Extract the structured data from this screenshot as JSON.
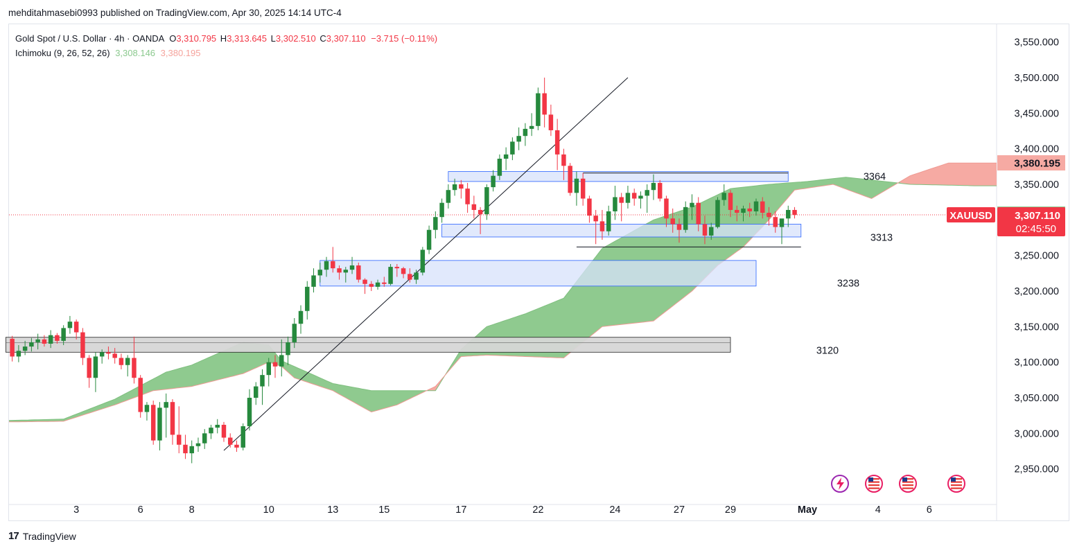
{
  "header": {
    "publisher": "mehditahmasebi0993 published on TradingView.com, Apr 30, 2025 14:14 UTC-4"
  },
  "legend": {
    "symbol": "Gold Spot / U.S. Dollar · 4h · OANDA",
    "o_label": "O",
    "o_value": "3,310.795",
    "h_label": "H",
    "h_value": "3,313.645",
    "l_label": "L",
    "l_value": "3,302.510",
    "c_label": "C",
    "c_value": "3,307.110",
    "change": "−3.715 (−0.11%)",
    "indicator": "Ichimoku (9, 26, 52, 26)",
    "span_a": "3,308.146",
    "span_b": "3,380.195"
  },
  "footer": {
    "brand": "TradingView",
    "logo_glyph": "17"
  },
  "colors": {
    "up": "#26893d",
    "down": "#f23645",
    "cloud_bull": "#8fca8f",
    "cloud_bear": "#f6aaa3",
    "zone_blue": "#d7e2fb",
    "zone_blue_border": "#2962ff",
    "zone_gray": "#d6d6d6"
  },
  "chart_data": {
    "type": "candlestick",
    "title": "Gold Spot / U.S. Dollar",
    "timeframe": "4h",
    "price_range": [
      2900,
      3575
    ],
    "y_ticks": [
      2950,
      3000,
      3050,
      3100,
      3150,
      3200,
      3250,
      3300,
      3350,
      3400,
      3450,
      3500,
      3550
    ],
    "y_tick_labels": [
      "2,950.000",
      "3,000.000",
      "3,050.000",
      "3,100.000",
      "3,150.000",
      "3,200.000",
      "3,250.000",
      "3,300.000",
      "3,350.000",
      "3,400.000",
      "3,450.000",
      "3,500.000",
      "3,550.000"
    ],
    "x_labels": [
      "3",
      "6",
      "8",
      "10",
      "13",
      "15",
      "17",
      "22",
      "24",
      "27",
      "29",
      "May",
      "4",
      "6"
    ],
    "x_label_bars": [
      10,
      20,
      28,
      40,
      50,
      58,
      70,
      82,
      94,
      104,
      112,
      124,
      135,
      143
    ],
    "first_visible_bar": -0.5,
    "last_visible_bar": 153.5,
    "candles": [
      [
        3133,
        3137,
        3101,
        3108
      ],
      [
        3108,
        3124,
        3100,
        3116
      ],
      [
        3116,
        3130,
        3110,
        3122
      ],
      [
        3122,
        3134,
        3115,
        3128
      ],
      [
        3128,
        3140,
        3118,
        3132
      ],
      [
        3132,
        3138,
        3122,
        3126
      ],
      [
        3126,
        3145,
        3120,
        3138
      ],
      [
        3138,
        3141,
        3126,
        3130
      ],
      [
        3130,
        3152,
        3124,
        3148
      ],
      [
        3148,
        3165,
        3140,
        3157
      ],
      [
        3157,
        3160,
        3132,
        3142
      ],
      [
        3142,
        3148,
        3096,
        3106
      ],
      [
        3106,
        3110,
        3064,
        3078
      ],
      [
        3078,
        3114,
        3058,
        3108
      ],
      [
        3108,
        3118,
        3098,
        3114
      ],
      [
        3114,
        3122,
        3104,
        3112
      ],
      [
        3112,
        3120,
        3098,
        3106
      ],
      [
        3106,
        3112,
        3090,
        3096
      ],
      [
        3096,
        3110,
        3080,
        3106
      ],
      [
        3106,
        3136,
        3070,
        3078
      ],
      [
        3078,
        3082,
        3022,
        3030
      ],
      [
        3030,
        3044,
        3018,
        3040
      ],
      [
        3040,
        3046,
        2984,
        2990
      ],
      [
        2990,
        3044,
        2976,
        3036
      ],
      [
        3036,
        3056,
        2994,
        3044
      ],
      [
        3044,
        3048,
        2984,
        2998
      ],
      [
        2998,
        3038,
        2972,
        2984
      ],
      [
        2984,
        2998,
        2964,
        2972
      ],
      [
        2972,
        2990,
        2958,
        2982
      ],
      [
        2982,
        2994,
        2974,
        2986
      ],
      [
        2986,
        3006,
        2978,
        3000
      ],
      [
        3000,
        3012,
        2992,
        3008
      ],
      [
        3008,
        3020,
        3000,
        3012
      ],
      [
        3012,
        3016,
        2988,
        2994
      ],
      [
        2994,
        3000,
        2980,
        2984
      ],
      [
        2984,
        2990,
        2974,
        2980
      ],
      [
        2980,
        3014,
        2976,
        3010
      ],
      [
        3010,
        3062,
        3004,
        3050
      ],
      [
        3050,
        3072,
        3040,
        3066
      ],
      [
        3066,
        3090,
        3040,
        3082
      ],
      [
        3082,
        3106,
        3066,
        3100
      ],
      [
        3100,
        3110,
        3078,
        3094
      ],
      [
        3094,
        3132,
        3080,
        3110
      ],
      [
        3110,
        3136,
        3096,
        3128
      ],
      [
        3128,
        3162,
        3120,
        3154
      ],
      [
        3154,
        3180,
        3140,
        3172
      ],
      [
        3172,
        3214,
        3160,
        3206
      ],
      [
        3206,
        3232,
        3198,
        3222
      ],
      [
        3222,
        3240,
        3212,
        3230
      ],
      [
        3230,
        3248,
        3220,
        3242
      ],
      [
        3242,
        3262,
        3226,
        3232
      ],
      [
        3232,
        3236,
        3216,
        3226
      ],
      [
        3226,
        3234,
        3212,
        3230
      ],
      [
        3230,
        3248,
        3224,
        3236
      ],
      [
        3236,
        3240,
        3212,
        3216
      ],
      [
        3216,
        3218,
        3196,
        3210
      ],
      [
        3210,
        3214,
        3200,
        3206
      ],
      [
        3206,
        3216,
        3202,
        3212
      ],
      [
        3212,
        3220,
        3206,
        3210
      ],
      [
        3210,
        3238,
        3208,
        3234
      ],
      [
        3234,
        3238,
        3220,
        3232
      ],
      [
        3232,
        3234,
        3218,
        3224
      ],
      [
        3224,
        3232,
        3212,
        3216
      ],
      [
        3216,
        3230,
        3210,
        3226
      ],
      [
        3226,
        3262,
        3222,
        3258
      ],
      [
        3258,
        3292,
        3252,
        3286
      ],
      [
        3286,
        3312,
        3274,
        3304
      ],
      [
        3304,
        3330,
        3296,
        3324
      ],
      [
        3324,
        3350,
        3316,
        3342
      ],
      [
        3342,
        3358,
        3334,
        3350
      ],
      [
        3350,
        3356,
        3330,
        3344
      ],
      [
        3344,
        3352,
        3310,
        3322
      ],
      [
        3322,
        3334,
        3302,
        3314
      ],
      [
        3314,
        3318,
        3280,
        3308
      ],
      [
        3308,
        3350,
        3300,
        3346
      ],
      [
        3346,
        3370,
        3340,
        3362
      ],
      [
        3362,
        3392,
        3356,
        3386
      ],
      [
        3386,
        3402,
        3370,
        3392
      ],
      [
        3392,
        3416,
        3384,
        3410
      ],
      [
        3410,
        3430,
        3398,
        3418
      ],
      [
        3418,
        3436,
        3404,
        3428
      ],
      [
        3428,
        3450,
        3418,
        3432
      ],
      [
        3432,
        3486,
        3426,
        3478
      ],
      [
        3478,
        3500,
        3430,
        3448
      ],
      [
        3448,
        3462,
        3418,
        3426
      ],
      [
        3426,
        3442,
        3370,
        3392
      ],
      [
        3392,
        3400,
        3356,
        3376
      ],
      [
        3376,
        3380,
        3334,
        3338
      ],
      [
        3338,
        3368,
        3320,
        3358
      ],
      [
        3358,
        3366,
        3320,
        3330
      ],
      [
        3330,
        3334,
        3296,
        3306
      ],
      [
        3306,
        3314,
        3266,
        3298
      ],
      [
        3298,
        3314,
        3272,
        3284
      ],
      [
        3284,
        3320,
        3278,
        3312
      ],
      [
        3312,
        3348,
        3300,
        3332
      ],
      [
        3332,
        3338,
        3298,
        3324
      ],
      [
        3324,
        3348,
        3316,
        3338
      ],
      [
        3338,
        3344,
        3320,
        3330
      ],
      [
        3330,
        3340,
        3316,
        3334
      ],
      [
        3334,
        3350,
        3310,
        3342
      ],
      [
        3342,
        3364,
        3328,
        3352
      ],
      [
        3352,
        3356,
        3326,
        3330
      ],
      [
        3330,
        3334,
        3290,
        3302
      ],
      [
        3302,
        3316,
        3282,
        3294
      ],
      [
        3294,
        3302,
        3268,
        3286
      ],
      [
        3286,
        3326,
        3282,
        3318
      ],
      [
        3318,
        3336,
        3300,
        3324
      ],
      [
        3324,
        3332,
        3284,
        3294
      ],
      [
        3294,
        3306,
        3266,
        3278
      ],
      [
        3278,
        3296,
        3272,
        3290
      ],
      [
        3290,
        3332,
        3288,
        3328
      ],
      [
        3328,
        3350,
        3320,
        3338
      ],
      [
        3338,
        3342,
        3304,
        3314
      ],
      [
        3314,
        3320,
        3298,
        3310
      ],
      [
        3310,
        3320,
        3298,
        3316
      ],
      [
        3316,
        3324,
        3304,
        3312
      ],
      [
        3312,
        3330,
        3306,
        3326
      ],
      [
        3326,
        3332,
        3302,
        3310
      ],
      [
        3310,
        3318,
        3292,
        3304
      ],
      [
        3304,
        3312,
        3282,
        3290
      ],
      [
        3290,
        3298,
        3266,
        3302
      ],
      [
        3302,
        3320,
        3290,
        3314
      ],
      [
        3314,
        3318,
        3302,
        3307
      ]
    ],
    "ichimoku": {
      "span_a_pts": [
        [
          -1,
          3018
        ],
        [
          8,
          3020
        ],
        [
          16,
          3048
        ],
        [
          24,
          3086
        ],
        [
          28,
          3096
        ],
        [
          32,
          3112
        ],
        [
          36,
          3128
        ],
        [
          40,
          3124
        ],
        [
          42,
          3102
        ],
        [
          45,
          3090
        ],
        [
          50,
          3070
        ],
        [
          56,
          3060
        ],
        [
          60,
          3060
        ],
        [
          66,
          3060
        ],
        [
          70,
          3118
        ],
        [
          74,
          3150
        ],
        [
          80,
          3168
        ],
        [
          86,
          3190
        ],
        [
          92,
          3260
        ],
        [
          100,
          3300
        ],
        [
          106,
          3318
        ],
        [
          112,
          3344
        ],
        [
          118,
          3350
        ],
        [
          124,
          3354
        ],
        [
          130,
          3360
        ],
        [
          140,
          3350
        ],
        [
          150,
          3348
        ],
        [
          154,
          3348
        ]
      ],
      "span_b_pts": [
        [
          -1,
          3016
        ],
        [
          8,
          3017
        ],
        [
          16,
          3040
        ],
        [
          22,
          3060
        ],
        [
          28,
          3066
        ],
        [
          36,
          3084
        ],
        [
          40,
          3100
        ],
        [
          42,
          3094
        ],
        [
          44,
          3078
        ],
        [
          50,
          3060
        ],
        [
          56,
          3030
        ],
        [
          60,
          3040
        ],
        [
          66,
          3066
        ],
        [
          70,
          3108
        ],
        [
          74,
          3110
        ],
        [
          80,
          3108
        ],
        [
          86,
          3106
        ],
        [
          92,
          3150
        ],
        [
          100,
          3158
        ],
        [
          106,
          3200
        ],
        [
          110,
          3236
        ],
        [
          114,
          3262
        ],
        [
          118,
          3300
        ],
        [
          122,
          3342
        ],
        [
          128,
          3350
        ],
        [
          134,
          3330
        ],
        [
          140,
          3362
        ],
        [
          146,
          3380
        ],
        [
          154,
          3380
        ]
      ]
    },
    "zones": [
      {
        "price_top": 3368,
        "price_bottom": 3354,
        "bar_start": 68,
        "bar_end": 121,
        "label": "3364"
      },
      {
        "price_top": 3294,
        "price_bottom": 3276,
        "bar_start": 67,
        "bar_end": 123,
        "label": "3313"
      },
      {
        "price_top": 3243,
        "price_bottom": 3207,
        "bar_start": 48,
        "bar_end": 116,
        "label": "3238"
      },
      {
        "price_top": 3135,
        "price_bottom": 3114,
        "bar_start": -1,
        "bar_end": 112,
        "label": "3120"
      }
    ],
    "horizontal_lines": [
      {
        "price": 3366,
        "bar_start": 89,
        "bar_end": 121
      },
      {
        "price": 3262,
        "bar_start": 88,
        "bar_end": 123
      }
    ],
    "trendline": {
      "bar1": 33,
      "price1": 2976,
      "bar2": 96,
      "price2": 3500
    },
    "price_labels": [
      {
        "price": 3380.195,
        "text": "3,380.195",
        "bg": "#f6aaa3",
        "fg": "#131722"
      },
      {
        "price": 3308.146,
        "text": "3,308.146",
        "bg": "#8fca8f",
        "fg": "#131722"
      }
    ],
    "last_price": {
      "price": 3307.11,
      "text": "3,307.110",
      "countdown": "02:45:50",
      "symbol": "XAUUSD",
      "bg": "#f23645"
    }
  }
}
